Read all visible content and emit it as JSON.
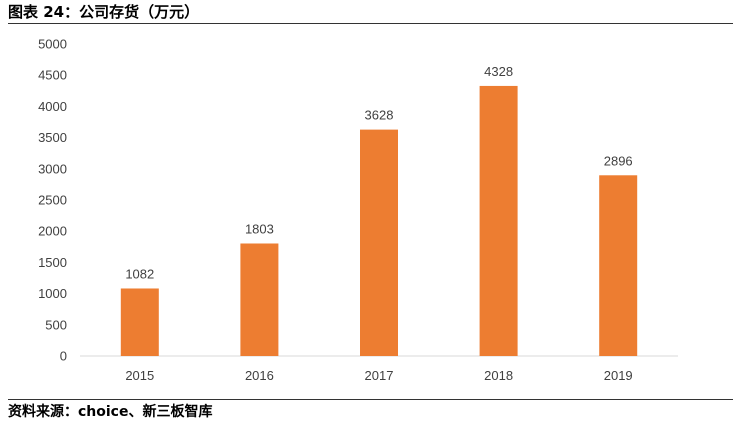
{
  "figure": {
    "title": "图表 24：公司存货（万元）",
    "source": "资料来源：choice、新三板智库"
  },
  "chart_data": {
    "type": "bar",
    "categories": [
      "2015",
      "2016",
      "2017",
      "2018",
      "2019"
    ],
    "values": [
      1082,
      1803,
      3628,
      4328,
      2896
    ],
    "data_labels": [
      "1082",
      "1803",
      "3628",
      "4328",
      "2896"
    ],
    "ylim": [
      0,
      5000
    ],
    "yticks": [
      0,
      500,
      1000,
      1500,
      2000,
      2500,
      3000,
      3500,
      4000,
      4500,
      5000
    ],
    "grid": false,
    "legend": "none",
    "bar_color": "#ED7D31",
    "axis_color": "#D9D9D9",
    "label_color": "#404040"
  }
}
